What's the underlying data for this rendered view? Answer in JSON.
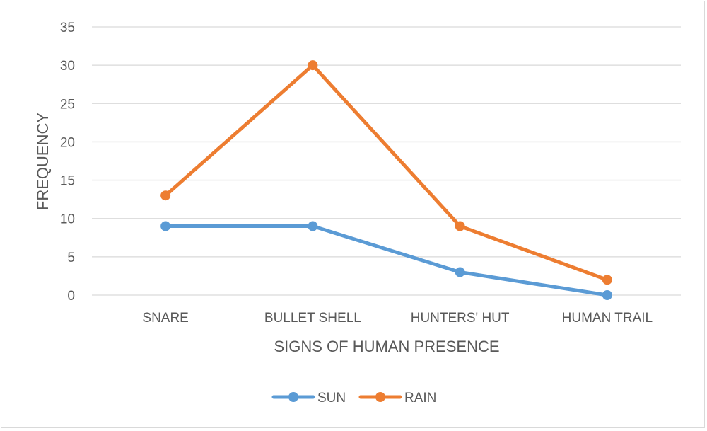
{
  "chart_data": {
    "type": "line",
    "title": "",
    "xlabel": "SIGNS OF HUMAN PRESENCE",
    "ylabel": "FREQUENCY",
    "categories": [
      "SNARE",
      "BULLET SHELL",
      "HUNTERS' HUT",
      "HUMAN TRAIL"
    ],
    "ylim": [
      0,
      35
    ],
    "yticks": [
      0,
      5,
      10,
      15,
      20,
      25,
      30,
      35
    ],
    "grid": true,
    "legend": "bottom",
    "series": [
      {
        "name": "SUN",
        "color": "#5b9bd5",
        "values": [
          9,
          9,
          3,
          0
        ]
      },
      {
        "name": "RAIN",
        "color": "#ed7d31",
        "values": [
          13,
          30,
          9,
          2
        ]
      }
    ]
  }
}
